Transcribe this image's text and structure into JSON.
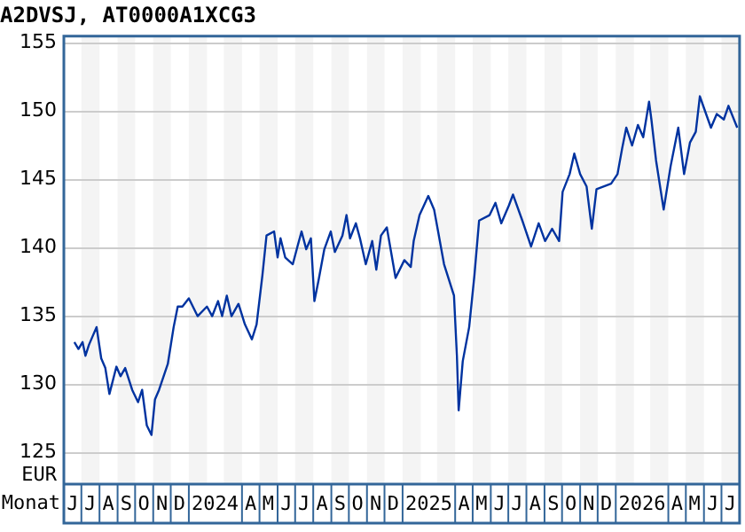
{
  "chart_data": {
    "type": "line",
    "title": "A2DVSJ, AT0000A1XCG3",
    "xlabel": "Monat",
    "ylabel": "EUR",
    "xlim": [
      "2023-06-01",
      "2026-08-01"
    ],
    "ylim": [
      122.7,
      155.5
    ],
    "yticks": [
      125,
      130,
      135,
      140,
      145,
      150,
      155
    ],
    "xticks": [
      {
        "value": "2023-06-16",
        "label": "J"
      },
      {
        "value": "2023-07-16",
        "label": "J"
      },
      {
        "value": "2023-08-16",
        "label": "A"
      },
      {
        "value": "2023-09-16",
        "label": "S"
      },
      {
        "value": "2023-10-16",
        "label": "O"
      },
      {
        "value": "2023-11-16",
        "label": "N"
      },
      {
        "value": "2023-12-16",
        "label": "D"
      },
      {
        "value": "2024-02-15",
        "label": "2024"
      },
      {
        "value": "2024-04-16",
        "label": "A"
      },
      {
        "value": "2024-05-16",
        "label": "M"
      },
      {
        "value": "2024-06-16",
        "label": "J"
      },
      {
        "value": "2024-07-16",
        "label": "J"
      },
      {
        "value": "2024-08-16",
        "label": "A"
      },
      {
        "value": "2024-09-16",
        "label": "S"
      },
      {
        "value": "2024-10-16",
        "label": "O"
      },
      {
        "value": "2024-11-16",
        "label": "N"
      },
      {
        "value": "2024-12-16",
        "label": "D"
      },
      {
        "value": "2025-02-15",
        "label": "2025"
      },
      {
        "value": "2025-04-16",
        "label": "A"
      },
      {
        "value": "2025-05-16",
        "label": "M"
      },
      {
        "value": "2025-06-16",
        "label": "J"
      },
      {
        "value": "2025-07-16",
        "label": "J"
      },
      {
        "value": "2025-08-16",
        "label": "A"
      },
      {
        "value": "2025-09-16",
        "label": "S"
      },
      {
        "value": "2025-10-16",
        "label": "O"
      },
      {
        "value": "2025-11-16",
        "label": "N"
      },
      {
        "value": "2025-12-16",
        "label": "D"
      },
      {
        "value": "2026-02-15",
        "label": "2026"
      },
      {
        "value": "2026-04-16",
        "label": "A"
      },
      {
        "value": "2026-05-16",
        "label": "M"
      },
      {
        "value": "2026-06-16",
        "label": "J"
      },
      {
        "value": "2026-07-16",
        "label": "J"
      }
    ],
    "bands": [
      {
        "axis": "x",
        "from": "2023-07-01",
        "to": "2023-08-01",
        "color": "#f4f4f4"
      },
      {
        "axis": "x",
        "from": "2023-09-01",
        "to": "2023-10-01",
        "color": "#f4f4f4"
      },
      {
        "axis": "x",
        "from": "2023-11-01",
        "to": "2023-12-01",
        "color": "#f4f4f4"
      },
      {
        "axis": "x",
        "from": "2024-01-01",
        "to": "2024-02-01",
        "color": "#f4f4f4"
      },
      {
        "axis": "x",
        "from": "2024-03-01",
        "to": "2024-04-01",
        "color": "#f4f4f4"
      },
      {
        "axis": "x",
        "from": "2024-05-01",
        "to": "2024-06-01",
        "color": "#f4f4f4"
      },
      {
        "axis": "x",
        "from": "2024-07-01",
        "to": "2024-08-01",
        "color": "#f4f4f4"
      },
      {
        "axis": "x",
        "from": "2024-09-01",
        "to": "2024-10-01",
        "color": "#f4f4f4"
      },
      {
        "axis": "x",
        "from": "2024-11-01",
        "to": "2024-12-01",
        "color": "#f4f4f4"
      },
      {
        "axis": "x",
        "from": "2025-01-01",
        "to": "2025-02-01",
        "color": "#f4f4f4"
      },
      {
        "axis": "x",
        "from": "2025-03-01",
        "to": "2025-04-01",
        "color": "#f4f4f4"
      },
      {
        "axis": "x",
        "from": "2025-05-01",
        "to": "2025-06-01",
        "color": "#f4f4f4"
      },
      {
        "axis": "x",
        "from": "2025-07-01",
        "to": "2025-08-01",
        "color": "#f4f4f4"
      },
      {
        "axis": "x",
        "from": "2025-09-01",
        "to": "2025-10-01",
        "color": "#f4f4f4"
      },
      {
        "axis": "x",
        "from": "2025-11-01",
        "to": "2025-12-01",
        "color": "#f4f4f4"
      },
      {
        "axis": "x",
        "from": "2026-01-01",
        "to": "2026-02-01",
        "color": "#f4f4f4"
      },
      {
        "axis": "x",
        "from": "2026-03-01",
        "to": "2026-04-01",
        "color": "#f4f4f4"
      },
      {
        "axis": "x",
        "from": "2026-05-01",
        "to": "2026-06-01",
        "color": "#f4f4f4"
      },
      {
        "axis": "x",
        "from": "2026-07-01",
        "to": "2026-08-01",
        "color": "#f4f4f4"
      }
    ],
    "grid": "y",
    "legend": false,
    "marker": "none",
    "line_style": "solid",
    "series": [
      {
        "color": "#0033a0",
        "x": [
          "2023-06-19",
          "2023-06-26",
          "2023-07-03",
          "2023-07-08",
          "2023-07-14",
          "2023-07-27",
          "2023-08-04",
          "2023-08-11",
          "2023-08-18",
          "2023-08-30",
          "2023-09-06",
          "2023-09-14",
          "2023-09-26",
          "2023-10-06",
          "2023-10-13",
          "2023-10-21",
          "2023-10-29",
          "2023-11-04",
          "2023-11-11",
          "2023-11-26",
          "2023-12-06",
          "2023-12-13",
          "2023-12-21",
          "2024-01-01",
          "2024-01-16",
          "2024-02-01",
          "2024-02-10",
          "2024-02-20",
          "2024-02-27",
          "2024-03-06",
          "2024-03-14",
          "2024-03-26",
          "2024-04-06",
          "2024-04-18",
          "2024-04-26",
          "2024-05-06",
          "2024-05-13",
          "2024-05-26",
          "2024-06-01",
          "2024-06-06",
          "2024-06-14",
          "2024-06-27",
          "2024-07-05",
          "2024-07-12",
          "2024-07-20",
          "2024-07-28",
          "2024-08-03",
          "2024-08-10",
          "2024-08-20",
          "2024-08-31",
          "2024-09-07",
          "2024-09-20",
          "2024-09-27",
          "2024-10-03",
          "2024-10-13",
          "2024-10-20",
          "2024-10-30",
          "2024-11-10",
          "2024-11-17",
          "2024-11-25",
          "2024-12-05",
          "2024-12-20",
          "2025-01-04",
          "2025-01-15",
          "2025-01-20",
          "2025-01-30",
          "2025-02-14",
          "2025-02-24",
          "2025-03-13",
          "2025-03-30",
          "2025-04-04",
          "2025-04-07",
          "2025-04-14",
          "2025-04-25",
          "2025-05-04",
          "2025-05-12",
          "2025-05-30",
          "2025-06-09",
          "2025-06-19",
          "2025-07-02",
          "2025-07-09",
          "2025-07-25",
          "2025-08-09",
          "2025-08-22",
          "2025-09-02",
          "2025-09-14",
          "2025-09-26",
          "2025-10-02",
          "2025-10-14",
          "2025-10-22",
          "2025-11-01",
          "2025-11-12",
          "2025-11-21",
          "2025-11-29",
          "2025-12-24",
          "2026-01-04",
          "2026-01-12",
          "2026-01-19",
          "2026-01-29",
          "2026-02-08",
          "2026-02-17",
          "2026-02-27",
          "2026-03-03",
          "2026-03-11",
          "2026-03-24",
          "2026-04-05",
          "2026-04-18",
          "2026-04-28",
          "2026-05-08",
          "2026-05-18",
          "2026-05-25",
          "2026-06-03",
          "2026-06-13",
          "2026-06-23",
          "2026-07-05",
          "2026-07-13",
          "2026-07-28"
        ],
        "values": [
          133.1,
          132.6,
          133.1,
          132.1,
          132.9,
          134.2,
          131.9,
          131.2,
          129.3,
          131.3,
          130.6,
          131.2,
          129.6,
          128.7,
          129.6,
          127.0,
          126.3,
          128.9,
          129.6,
          131.5,
          134.2,
          135.7,
          135.7,
          136.3,
          135.0,
          135.7,
          135.0,
          136.1,
          135.0,
          136.5,
          135.0,
          135.9,
          134.4,
          133.3,
          134.4,
          138.0,
          140.9,
          141.2,
          139.3,
          140.7,
          139.3,
          138.8,
          140.1,
          141.2,
          139.9,
          140.7,
          136.1,
          137.6,
          139.9,
          141.2,
          139.7,
          140.9,
          142.4,
          140.7,
          141.8,
          140.7,
          138.8,
          140.5,
          138.4,
          140.9,
          141.5,
          137.8,
          139.1,
          138.6,
          140.5,
          142.4,
          143.8,
          142.8,
          138.8,
          136.5,
          132.1,
          128.1,
          131.7,
          134.2,
          138.0,
          142.0,
          142.4,
          143.3,
          141.8,
          143.1,
          143.9,
          142.0,
          140.1,
          141.8,
          140.5,
          141.4,
          140.5,
          144.1,
          145.4,
          146.9,
          145.4,
          144.5,
          141.4,
          144.3,
          144.7,
          145.4,
          147.3,
          148.8,
          147.5,
          149.0,
          148.1,
          150.7,
          149.4,
          146.4,
          142.8,
          146.0,
          148.8,
          145.4,
          147.7,
          148.5,
          151.1,
          150.0,
          148.8,
          149.8,
          149.4,
          150.4,
          148.8
        ]
      }
    ]
  }
}
